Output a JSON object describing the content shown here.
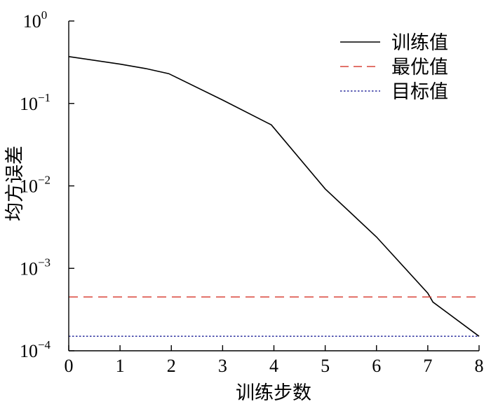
{
  "chart_data": {
    "type": "line",
    "xlabel": "训练步数",
    "ylabel": "均方误差",
    "xlim": [
      0,
      8
    ],
    "ylim": [
      0.0001,
      1
    ],
    "yscale": "log",
    "xticks": [
      0,
      1,
      2,
      3,
      4,
      5,
      6,
      7,
      8
    ],
    "yticks": [
      {
        "base": "10",
        "exp": "0",
        "value": 1
      },
      {
        "base": "10",
        "exp": "−1",
        "value": 0.1
      },
      {
        "base": "10",
        "exp": "−2",
        "value": 0.01
      },
      {
        "base": "10",
        "exp": "−3",
        "value": 0.001
      },
      {
        "base": "10",
        "exp": "−4",
        "value": 0.0001
      }
    ],
    "legend_position": "top-right",
    "series": [
      {
        "name": "训练值",
        "style": "solid",
        "color": "#000000",
        "x": [
          0,
          1,
          1.5,
          1.95,
          3,
          3.95,
          5,
          6,
          7,
          7.1,
          8
        ],
        "y": [
          0.37,
          0.3,
          0.265,
          0.23,
          0.11,
          0.055,
          0.0092,
          0.0024,
          0.0005,
          0.00039,
          0.00015
        ]
      },
      {
        "name": "最优值",
        "style": "dashed",
        "color": "#d9453a",
        "x": [
          0,
          8
        ],
        "y": [
          0.00045,
          0.00045
        ]
      },
      {
        "name": "目标值",
        "style": "dotted",
        "color": "#2b2f9e",
        "x": [
          0,
          8
        ],
        "y": [
          0.00015,
          0.00015
        ]
      }
    ]
  }
}
